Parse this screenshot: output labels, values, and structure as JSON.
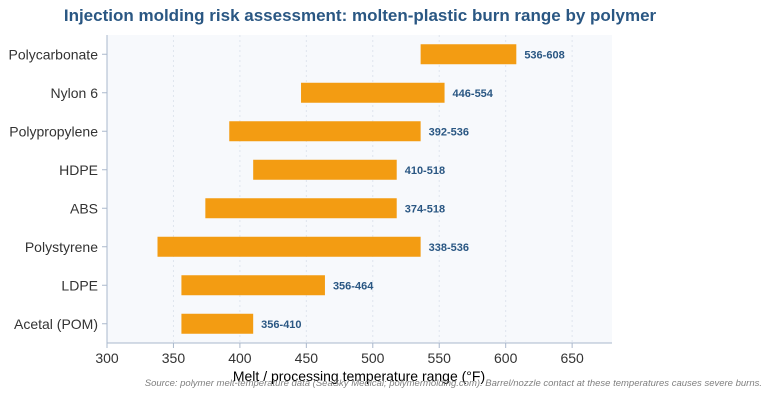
{
  "chart_data": {
    "type": "bar",
    "orientation": "horizontal-range",
    "title": "Injection molding risk assessment: molten-plastic burn range by polymer",
    "xlabel": "Melt / processing temperature range (°F)",
    "ylabel": "",
    "xlim": [
      300,
      680
    ],
    "xticks": [
      300,
      350,
      400,
      450,
      500,
      550,
      600,
      650
    ],
    "grid": true,
    "bar_color": "#f39c12",
    "label_color": "#2a5783",
    "categories": [
      "Polycarbonate",
      "Nylon 6",
      "Polypropylene",
      "HDPE",
      "ABS",
      "Polystyrene",
      "LDPE",
      "Acetal (POM)"
    ],
    "series": [
      {
        "ranges": [
          [
            536,
            608
          ],
          [
            446,
            554
          ],
          [
            392,
            536
          ],
          [
            410,
            518
          ],
          [
            374,
            518
          ],
          [
            338,
            536
          ],
          [
            356,
            464
          ],
          [
            356,
            410
          ]
        ],
        "labels": [
          "536-608",
          "446-554",
          "392-536",
          "410-518",
          "374-518",
          "338-536",
          "356-464",
          "356-410"
        ]
      }
    ],
    "source": "Source: polymer melt-temperature data (SeaSky Medical; polymermolding.com). Barrel/nozzle contact at these temperatures causes severe burns."
  }
}
